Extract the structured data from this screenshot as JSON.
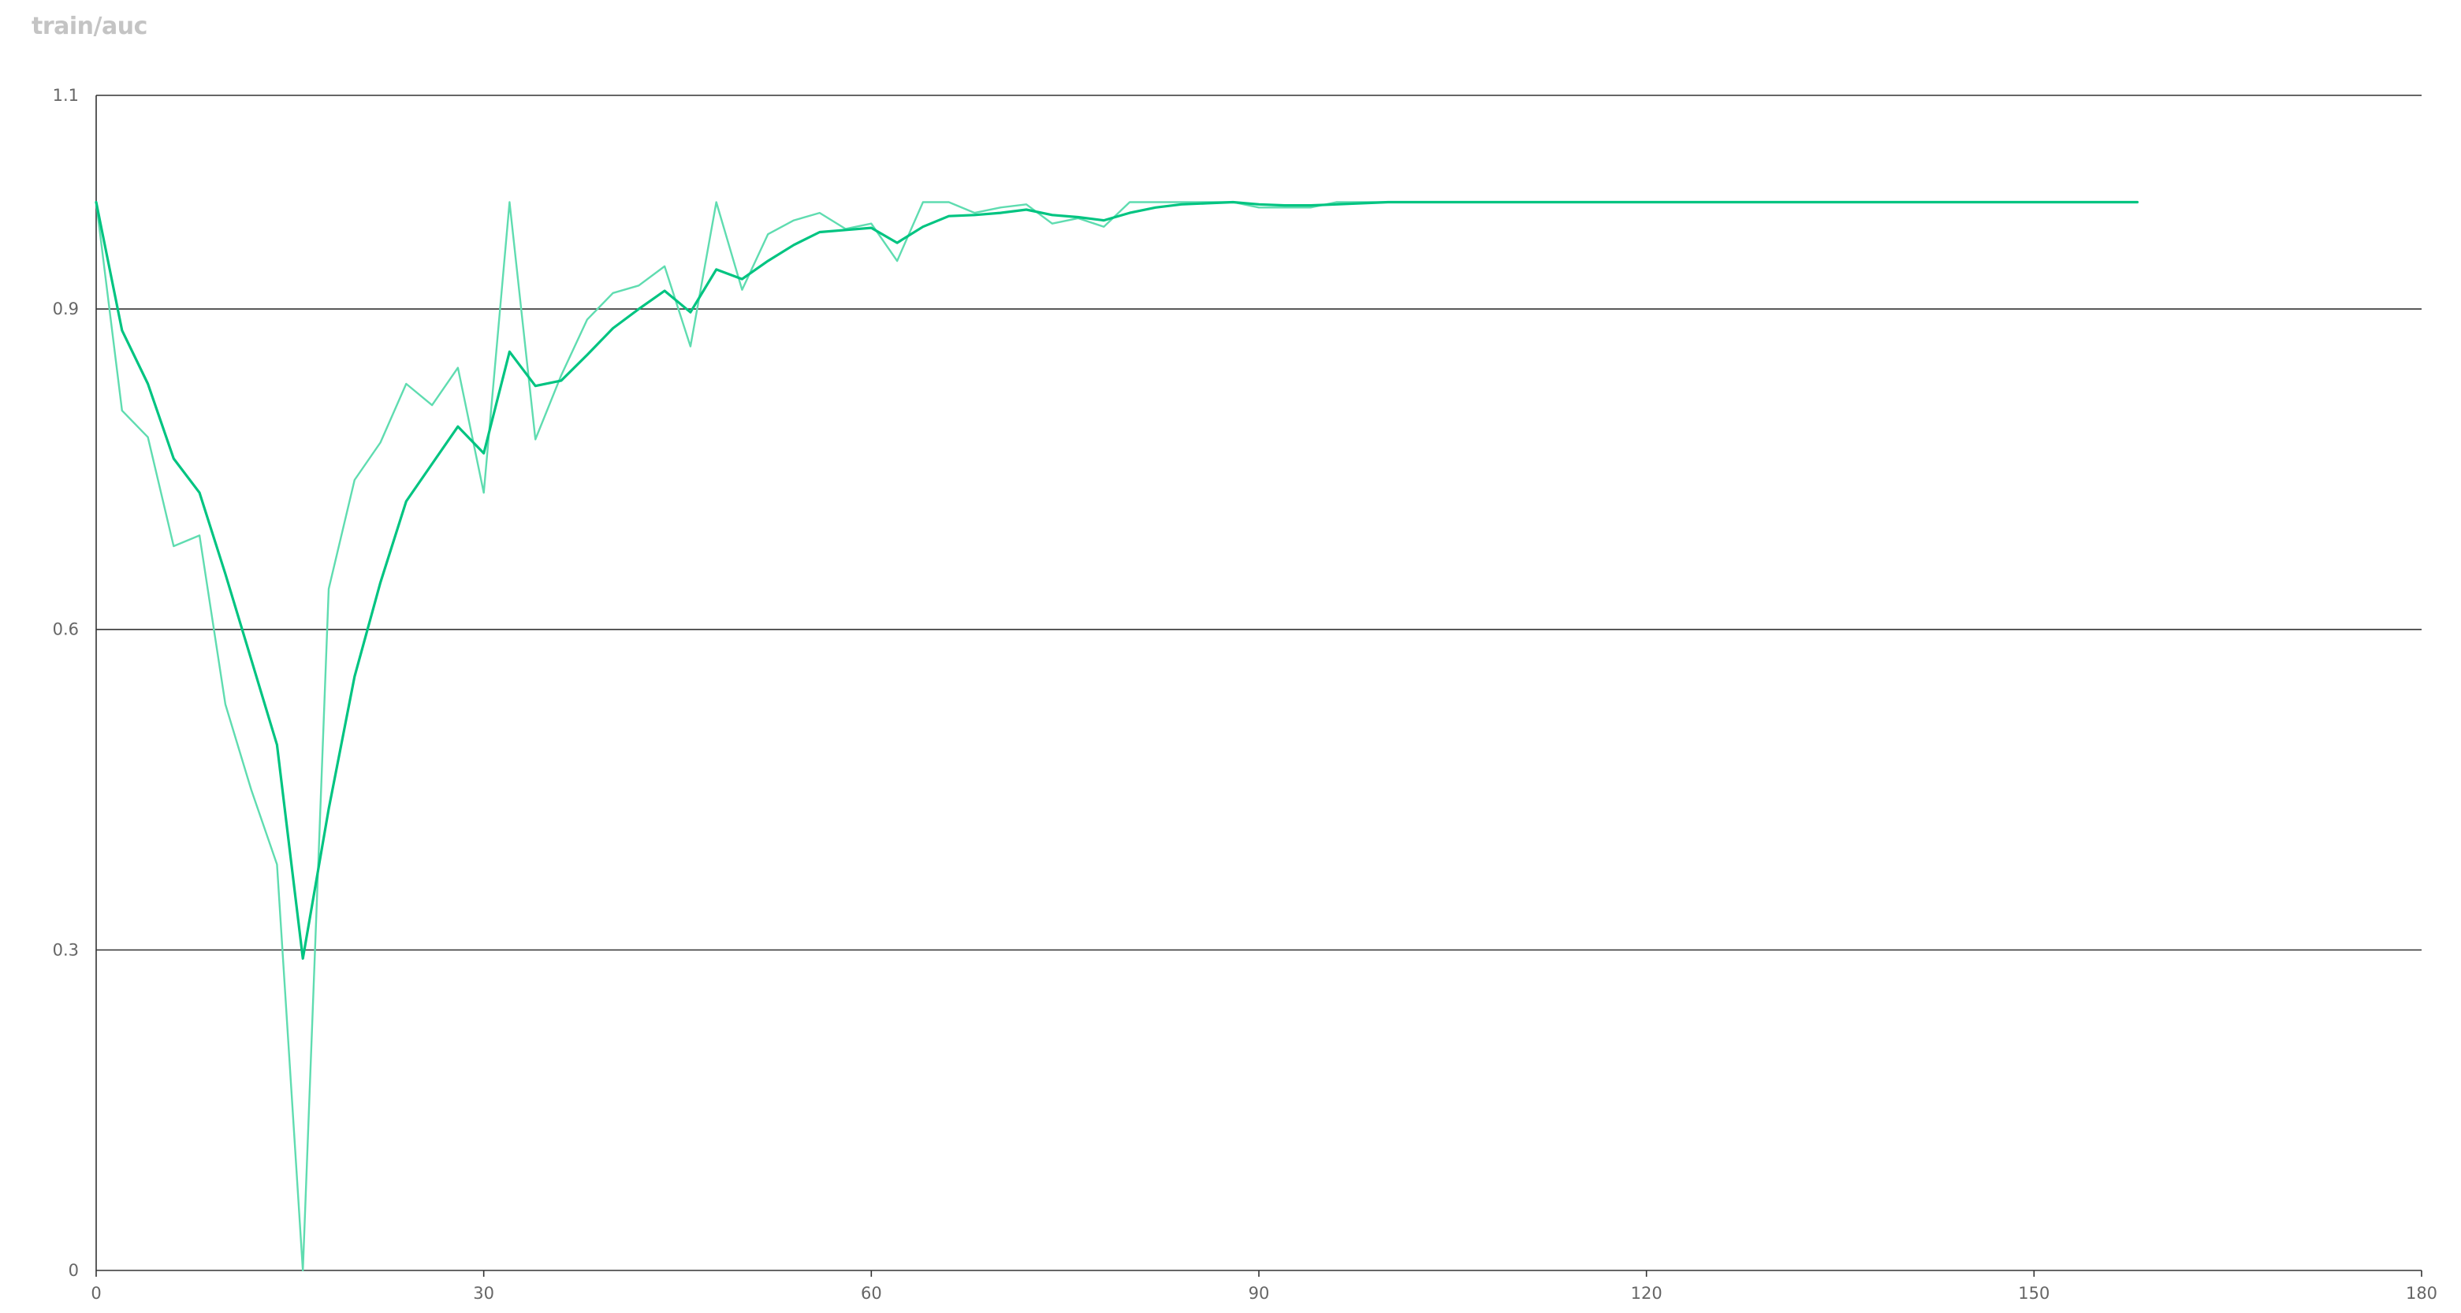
{
  "chart_data": {
    "type": "line",
    "title": "train/auc",
    "xlabel": "",
    "ylabel": "",
    "xlim": [
      0,
      180
    ],
    "ylim": [
      0,
      1.1
    ],
    "x_ticks": [
      "0",
      "30",
      "60",
      "90",
      "120",
      "150",
      "180"
    ],
    "y_ticks": [
      "0",
      "0.3",
      "0.6",
      "0.9",
      "1.1"
    ],
    "grid": "horizontal",
    "legend": "none",
    "series": [
      {
        "style": "raw",
        "color": "#5fdcb0",
        "x": [
          0,
          2,
          4,
          6,
          8,
          10,
          12,
          14,
          16,
          18,
          20,
          22,
          24,
          26,
          28,
          30,
          32,
          34,
          36,
          38,
          40,
          42,
          44,
          46,
          48,
          50,
          52,
          54,
          56,
          58,
          60,
          62,
          64,
          66,
          68,
          70,
          72,
          74,
          76,
          78,
          80,
          82,
          84,
          86,
          88,
          90,
          92,
          94,
          96,
          98,
          100,
          104,
          110,
          120,
          130,
          140,
          150,
          158
        ],
        "y": [
          1.0,
          0.805,
          0.78,
          0.678,
          0.688,
          0.53,
          0.45,
          0.38,
          0.0,
          0.638,
          0.74,
          0.775,
          0.83,
          0.81,
          0.845,
          0.728,
          1.0,
          0.778,
          0.838,
          0.89,
          0.915,
          0.922,
          0.94,
          0.865,
          1.0,
          0.918,
          0.97,
          0.983,
          0.99,
          0.975,
          0.98,
          0.945,
          1.0,
          1.0,
          0.99,
          0.995,
          0.998,
          0.98,
          0.985,
          0.977,
          1.0,
          1.0,
          1.0,
          1.0,
          1.0,
          0.995,
          0.995,
          0.995,
          1.0,
          1.0,
          1.0,
          1.0,
          1.0,
          1.0,
          1.0,
          1.0,
          1.0,
          1.0
        ]
      },
      {
        "style": "smoothed",
        "color": "#00c481",
        "x": [
          0,
          2,
          4,
          6,
          8,
          10,
          12,
          14,
          16,
          18,
          20,
          22,
          24,
          26,
          28,
          30,
          32,
          34,
          36,
          38,
          40,
          42,
          44,
          46,
          48,
          50,
          52,
          54,
          56,
          58,
          60,
          62,
          64,
          66,
          68,
          70,
          72,
          74,
          76,
          78,
          80,
          82,
          84,
          86,
          88,
          90,
          92,
          94,
          96,
          98,
          100,
          104,
          110,
          120,
          130,
          140,
          150,
          158
        ],
        "y": [
          1.0,
          0.88,
          0.83,
          0.76,
          0.728,
          0.652,
          0.572,
          0.492,
          0.292,
          0.432,
          0.556,
          0.644,
          0.72,
          0.755,
          0.79,
          0.765,
          0.86,
          0.828,
          0.833,
          0.857,
          0.882,
          0.9,
          0.917,
          0.897,
          0.937,
          0.928,
          0.945,
          0.96,
          0.972,
          0.974,
          0.976,
          0.962,
          0.977,
          0.987,
          0.988,
          0.99,
          0.993,
          0.988,
          0.986,
          0.983,
          0.99,
          0.995,
          0.998,
          0.999,
          1.0,
          0.998,
          0.997,
          0.997,
          0.998,
          0.999,
          1.0,
          1.0,
          1.0,
          1.0,
          1.0,
          1.0,
          1.0,
          1.0
        ]
      }
    ]
  }
}
